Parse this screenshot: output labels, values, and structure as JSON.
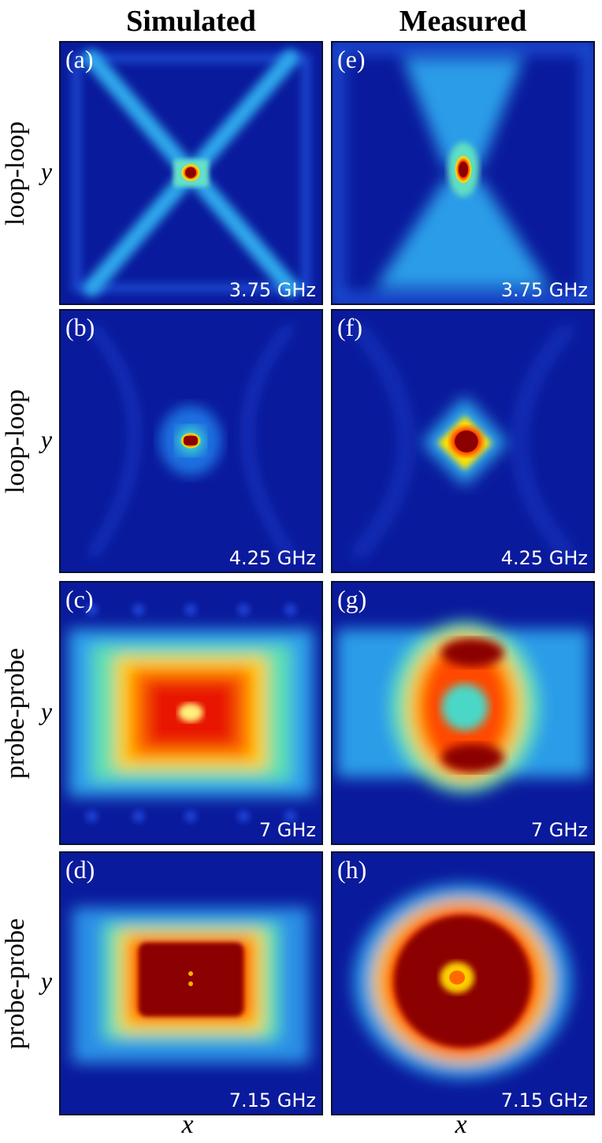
{
  "columns": {
    "simulated": "Simulated",
    "measured": "Measured"
  },
  "rows": [
    "loop-loop",
    "loop-loop",
    "probe-probe",
    "probe-probe"
  ],
  "axis": {
    "x": "x",
    "y": "y"
  },
  "panels": [
    {
      "letter": "(a)",
      "freq": "3.75 GHz"
    },
    {
      "letter": "(b)",
      "freq": "4.25 GHz"
    },
    {
      "letter": "(c)",
      "freq": "7 GHz"
    },
    {
      "letter": "(d)",
      "freq": "7.15 GHz"
    },
    {
      "letter": "(e)",
      "freq": "3.75 GHz"
    },
    {
      "letter": "(f)",
      "freq": "4.25 GHz"
    },
    {
      "letter": "(g)",
      "freq": "7 GHz"
    },
    {
      "letter": "(h)",
      "freq": "7.15 GHz"
    }
  ],
  "colors": {
    "background": "#0a1a9c",
    "cyan": "#33c8f0",
    "yellow": "#ffe600",
    "red": "#ff2200",
    "darkred": "#8b0000"
  }
}
